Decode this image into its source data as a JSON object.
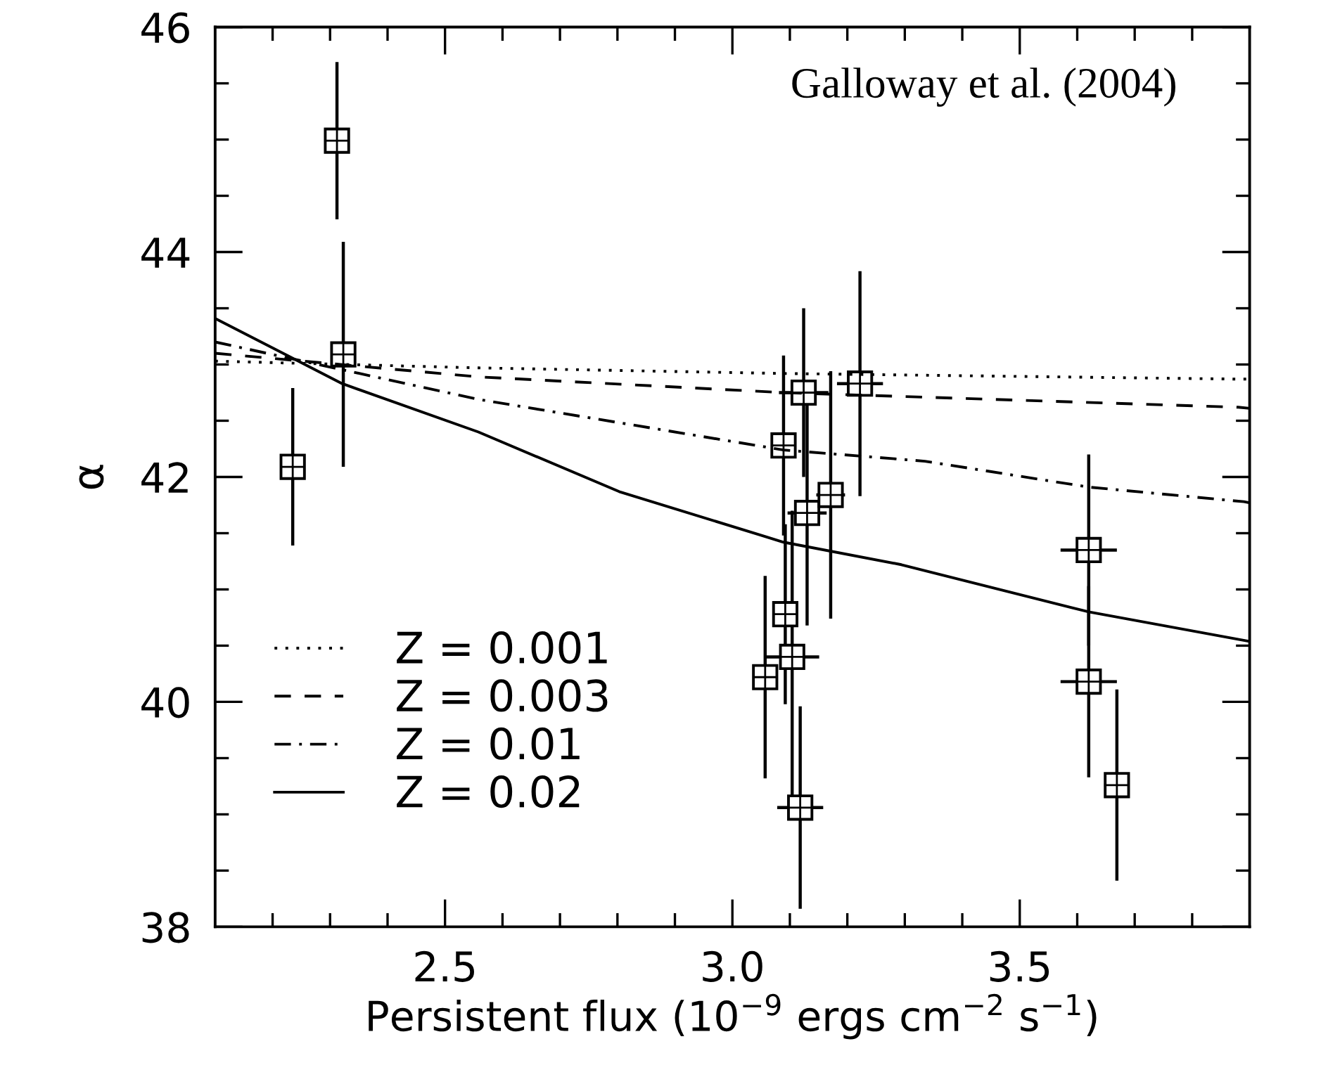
{
  "chart_data": {
    "type": "scatter",
    "xlabel": "Persistent flux (10$^{−9}$ ergs cm$^{−2}$ s$^{−1}$)",
    "ylabel": "α",
    "annotations": [
      "Galloway et al. (2004)"
    ],
    "xlim": [
      2.1,
      3.9
    ],
    "ylim": [
      38,
      46
    ],
    "xticks": [
      {
        "value": 2.2,
        "label": null
      },
      {
        "value": 2.3,
        "label": null
      },
      {
        "value": 2.4,
        "label": null
      },
      2.5,
      {
        "value": 2.6,
        "label": null
      },
      {
        "value": 2.7,
        "label": null
      },
      {
        "value": 2.8,
        "label": null
      },
      {
        "value": 2.9,
        "label": null
      },
      {
        "value": 3.0,
        "label": "3.0"
      },
      {
        "value": 3.1,
        "label": null
      },
      {
        "value": 3.2,
        "label": null
      },
      {
        "value": 3.3,
        "label": null
      },
      {
        "value": 3.4,
        "label": null
      },
      3.5,
      {
        "value": 3.6,
        "label": null
      },
      {
        "value": 3.7,
        "label": null
      },
      {
        "value": 3.8,
        "label": null
      }
    ],
    "yticks": [
      38,
      {
        "value": 38.5,
        "label": null
      },
      {
        "value": 39,
        "label": null
      },
      {
        "value": 39.5,
        "label": null
      },
      40,
      {
        "value": 40.5,
        "label": null
      },
      {
        "value": 41,
        "label": null
      },
      {
        "value": 41.5,
        "label": null
      },
      42,
      {
        "value": 42.5,
        "label": null
      },
      {
        "value": 43,
        "label": null
      },
      {
        "value": 43.5,
        "label": null
      },
      44,
      {
        "value": 44.5,
        "label": null
      },
      {
        "value": 45,
        "label": null
      },
      {
        "value": 45.5,
        "label": null
      },
      46
    ],
    "grid": false,
    "legend": "bottom left",
    "series": [
      {
        "color": "#000000",
        "marker": "square",
        "x": [
          2.235,
          2.312,
          2.323,
          3.057,
          3.089,
          3.092,
          3.104,
          3.118,
          3.124,
          3.13,
          3.171,
          3.222,
          3.62,
          3.62,
          3.669
        ],
        "values": [
          42.09,
          44.99,
          43.09,
          40.22,
          42.28,
          40.78,
          40.4,
          39.06,
          42.75,
          41.68,
          41.84,
          42.83,
          41.35,
          40.18,
          39.26
        ],
        "errors": [
          0.7,
          0.7,
          1.0,
          0.9,
          0.8,
          0.8,
          1.3,
          0.9,
          0.75,
          1.0,
          1.1,
          1.0,
          0.85,
          0.85,
          0.85
        ],
        "xerrors": [
          null,
          null,
          null,
          0.02,
          0.022,
          null,
          0.047,
          0.04,
          0.043,
          0.034,
          0.025,
          0.04,
          0.049,
          0.049,
          0.022
        ]
      },
      {
        "type": "line",
        "name": "Z = 0.001",
        "color": "#000000",
        "line_style": "dotted",
        "marker": "none",
        "x": [
          2.1,
          2.558,
          3.089,
          3.88,
          3.9
        ],
        "values": [
          43.03,
          42.97,
          42.92,
          42.87,
          42.87
        ]
      },
      {
        "type": "line",
        "name": "Z = 0.003",
        "color": "#000000",
        "line_style": "dashed",
        "marker": "none",
        "x": [
          2.1,
          2.558,
          3.089,
          3.88,
          3.9
        ],
        "values": [
          43.1,
          42.89,
          42.75,
          42.62,
          42.61
        ]
      },
      {
        "type": "line",
        "name": "Z = 0.01",
        "color": "#000000",
        "line_style": "dashdot",
        "marker": "none",
        "x": [
          2.1,
          2.558,
          3.089,
          3.335,
          3.62,
          3.89,
          3.9
        ],
        "values": [
          43.2,
          42.69,
          42.24,
          42.14,
          41.91,
          41.78,
          41.77
        ]
      },
      {
        "type": "line",
        "name": "Z = 0.02",
        "color": "#000000",
        "line_style": "solid",
        "marker": "none",
        "x": [
          2.1,
          2.321,
          2.558,
          2.803,
          3.089,
          3.294,
          3.62,
          3.898,
          3.9
        ],
        "values": [
          43.41,
          42.83,
          42.4,
          41.87,
          41.42,
          41.22,
          40.8,
          40.54,
          40.54
        ]
      }
    ]
  }
}
